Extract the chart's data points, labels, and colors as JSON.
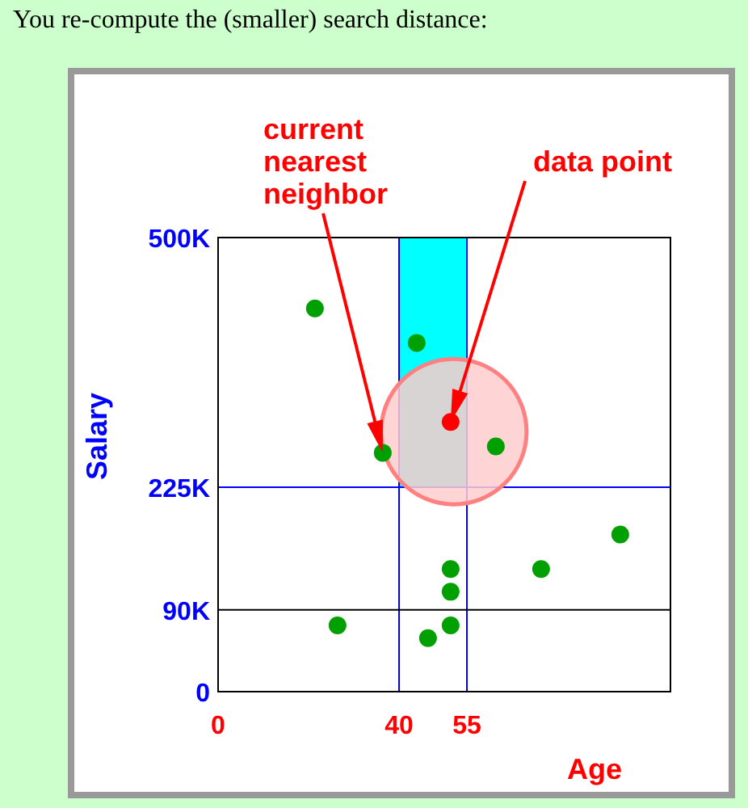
{
  "chart_data": {
    "type": "scatter",
    "title": "You re-compute the (smaller) search distance:",
    "xlabel": "Age",
    "ylabel": "Salary",
    "xlim": [
      0,
      100
    ],
    "ylim": [
      0,
      500
    ],
    "xticks": [
      0,
      40,
      55
    ],
    "yticks": [
      {
        "value": 0,
        "label": "0"
      },
      {
        "value": 90,
        "label": "90K"
      },
      {
        "value": 225,
        "label": "225K"
      },
      {
        "value": 500,
        "label": "500K"
      }
    ],
    "series": [
      {
        "color": "#00a000",
        "x": [
          21.4,
          43.9,
          36.4,
          61.4,
          88.9,
          51.4,
          71.4,
          51.4,
          26.4,
          46.4,
          51.4
        ],
        "values": [
          422,
          384,
          263,
          270,
          173,
          135,
          135,
          110,
          73,
          59,
          73
        ]
      },
      {
        "color": "#ff0000",
        "x": [
          51.4
        ],
        "values": [
          297
        ]
      }
    ],
    "ref_lines": [
      {
        "axis": "x",
        "value": 40,
        "color": "#0000ff"
      },
      {
        "axis": "x",
        "value": 55,
        "color": "#0000ff"
      },
      {
        "axis": "y",
        "value": 225,
        "color": "#0000ff"
      },
      {
        "axis": "y",
        "value": 90,
        "color": "#000000"
      }
    ],
    "bands": [
      {
        "axis": "x",
        "from": 40,
        "to": 55,
        "color": "#00ffff"
      }
    ],
    "annotations": [
      "current nearest neighbor",
      "data point"
    ],
    "grid": false,
    "marker": "circle"
  }
}
